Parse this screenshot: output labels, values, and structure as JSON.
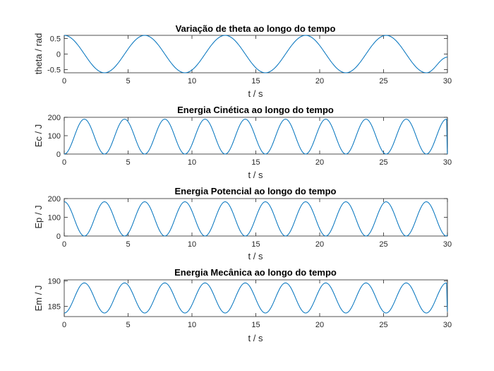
{
  "chart_data": [
    {
      "type": "line",
      "title": "Variação de theta ao longo do tempo",
      "xlabel": "t / s",
      "ylabel": "theta / rad",
      "xlim": [
        0,
        30
      ],
      "ylim": [
        -0.6,
        0.6
      ],
      "xticks": [
        0,
        5,
        10,
        15,
        20,
        25,
        30
      ],
      "yticks": [
        -0.5,
        0,
        0.5
      ],
      "ytick_labels": [
        "-0.5",
        "0",
        "0.5"
      ],
      "grid": false,
      "series": [
        {
          "color": "#0072BD",
          "x": [
            0,
            3.15,
            6.3,
            9.45,
            12.6,
            15.75,
            18.9,
            22.05,
            25.2,
            28.35,
            30
          ],
          "y": [
            0.6,
            -0.6,
            0.6,
            -0.6,
            0.6,
            -0.6,
            0.6,
            -0.6,
            0.6,
            -0.6,
            -0.1
          ]
        }
      ]
    },
    {
      "type": "line",
      "title": "Energia Cinética ao longo do tempo",
      "xlabel": "t / s",
      "ylabel": "Ec / J",
      "xlim": [
        0,
        30
      ],
      "ylim": [
        0,
        200
      ],
      "xticks": [
        0,
        5,
        10,
        15,
        20,
        25,
        30
      ],
      "yticks": [
        0,
        100,
        200
      ],
      "ytick_labels": [
        "0",
        "100",
        "200"
      ],
      "grid": false,
      "series": [
        {
          "color": "#0072BD",
          "x": [
            0,
            1.575,
            3.15,
            4.725,
            6.3,
            7.875,
            9.45,
            11.025,
            12.6,
            14.175,
            15.75,
            17.325,
            18.9,
            20.475,
            22.05,
            23.625,
            25.2,
            26.775,
            28.35,
            29.925,
            30
          ],
          "y": [
            0,
            190,
            0,
            190,
            0,
            190,
            0,
            190,
            0,
            190,
            0,
            190,
            0,
            190,
            0,
            190,
            0,
            190,
            0,
            190,
            0
          ]
        }
      ]
    },
    {
      "type": "line",
      "title": "Energia Potencial ao longo do tempo",
      "xlabel": "t / s",
      "ylabel": "Ep / J",
      "xlim": [
        0,
        30
      ],
      "ylim": [
        0,
        200
      ],
      "xticks": [
        0,
        5,
        10,
        15,
        20,
        25,
        30
      ],
      "yticks": [
        0,
        100,
        200
      ],
      "ytick_labels": [
        "0",
        "100",
        "200"
      ],
      "grid": false,
      "series": [
        {
          "color": "#0072BD",
          "x": [
            0,
            1.575,
            3.15,
            4.725,
            6.3,
            7.875,
            9.45,
            11.025,
            12.6,
            14.175,
            15.75,
            17.325,
            18.9,
            20.475,
            22.05,
            23.625,
            25.2,
            26.775,
            28.35,
            29.925,
            30
          ],
          "y": [
            183,
            0,
            183,
            0,
            183,
            0,
            183,
            0,
            183,
            0,
            183,
            0,
            183,
            0,
            183,
            0,
            183,
            0,
            183,
            0,
            5
          ]
        }
      ]
    },
    {
      "type": "line",
      "title": "Energia Mecânica ao longo do tempo",
      "xlabel": "t / s",
      "ylabel": "Em / J",
      "xlim": [
        0,
        30
      ],
      "ylim": [
        183,
        190.2
      ],
      "xticks": [
        0,
        5,
        10,
        15,
        20,
        25,
        30
      ],
      "yticks": [
        185,
        190
      ],
      "ytick_labels": [
        "185",
        "190"
      ],
      "grid": false,
      "series": [
        {
          "color": "#0072BD",
          "x": [
            0,
            1.575,
            3.15,
            4.725,
            6.3,
            7.875,
            9.45,
            11.025,
            12.6,
            14.175,
            15.75,
            17.325,
            18.9,
            20.475,
            22.05,
            23.625,
            25.2,
            26.775,
            28.35,
            29.925,
            30
          ],
          "y": [
            183.7,
            189.6,
            183.7,
            189.6,
            183.7,
            189.6,
            183.7,
            189.6,
            183.7,
            189.6,
            183.7,
            189.6,
            183.7,
            189.6,
            183.7,
            189.6,
            183.7,
            189.6,
            183.7,
            189.6,
            184
          ]
        }
      ]
    }
  ]
}
